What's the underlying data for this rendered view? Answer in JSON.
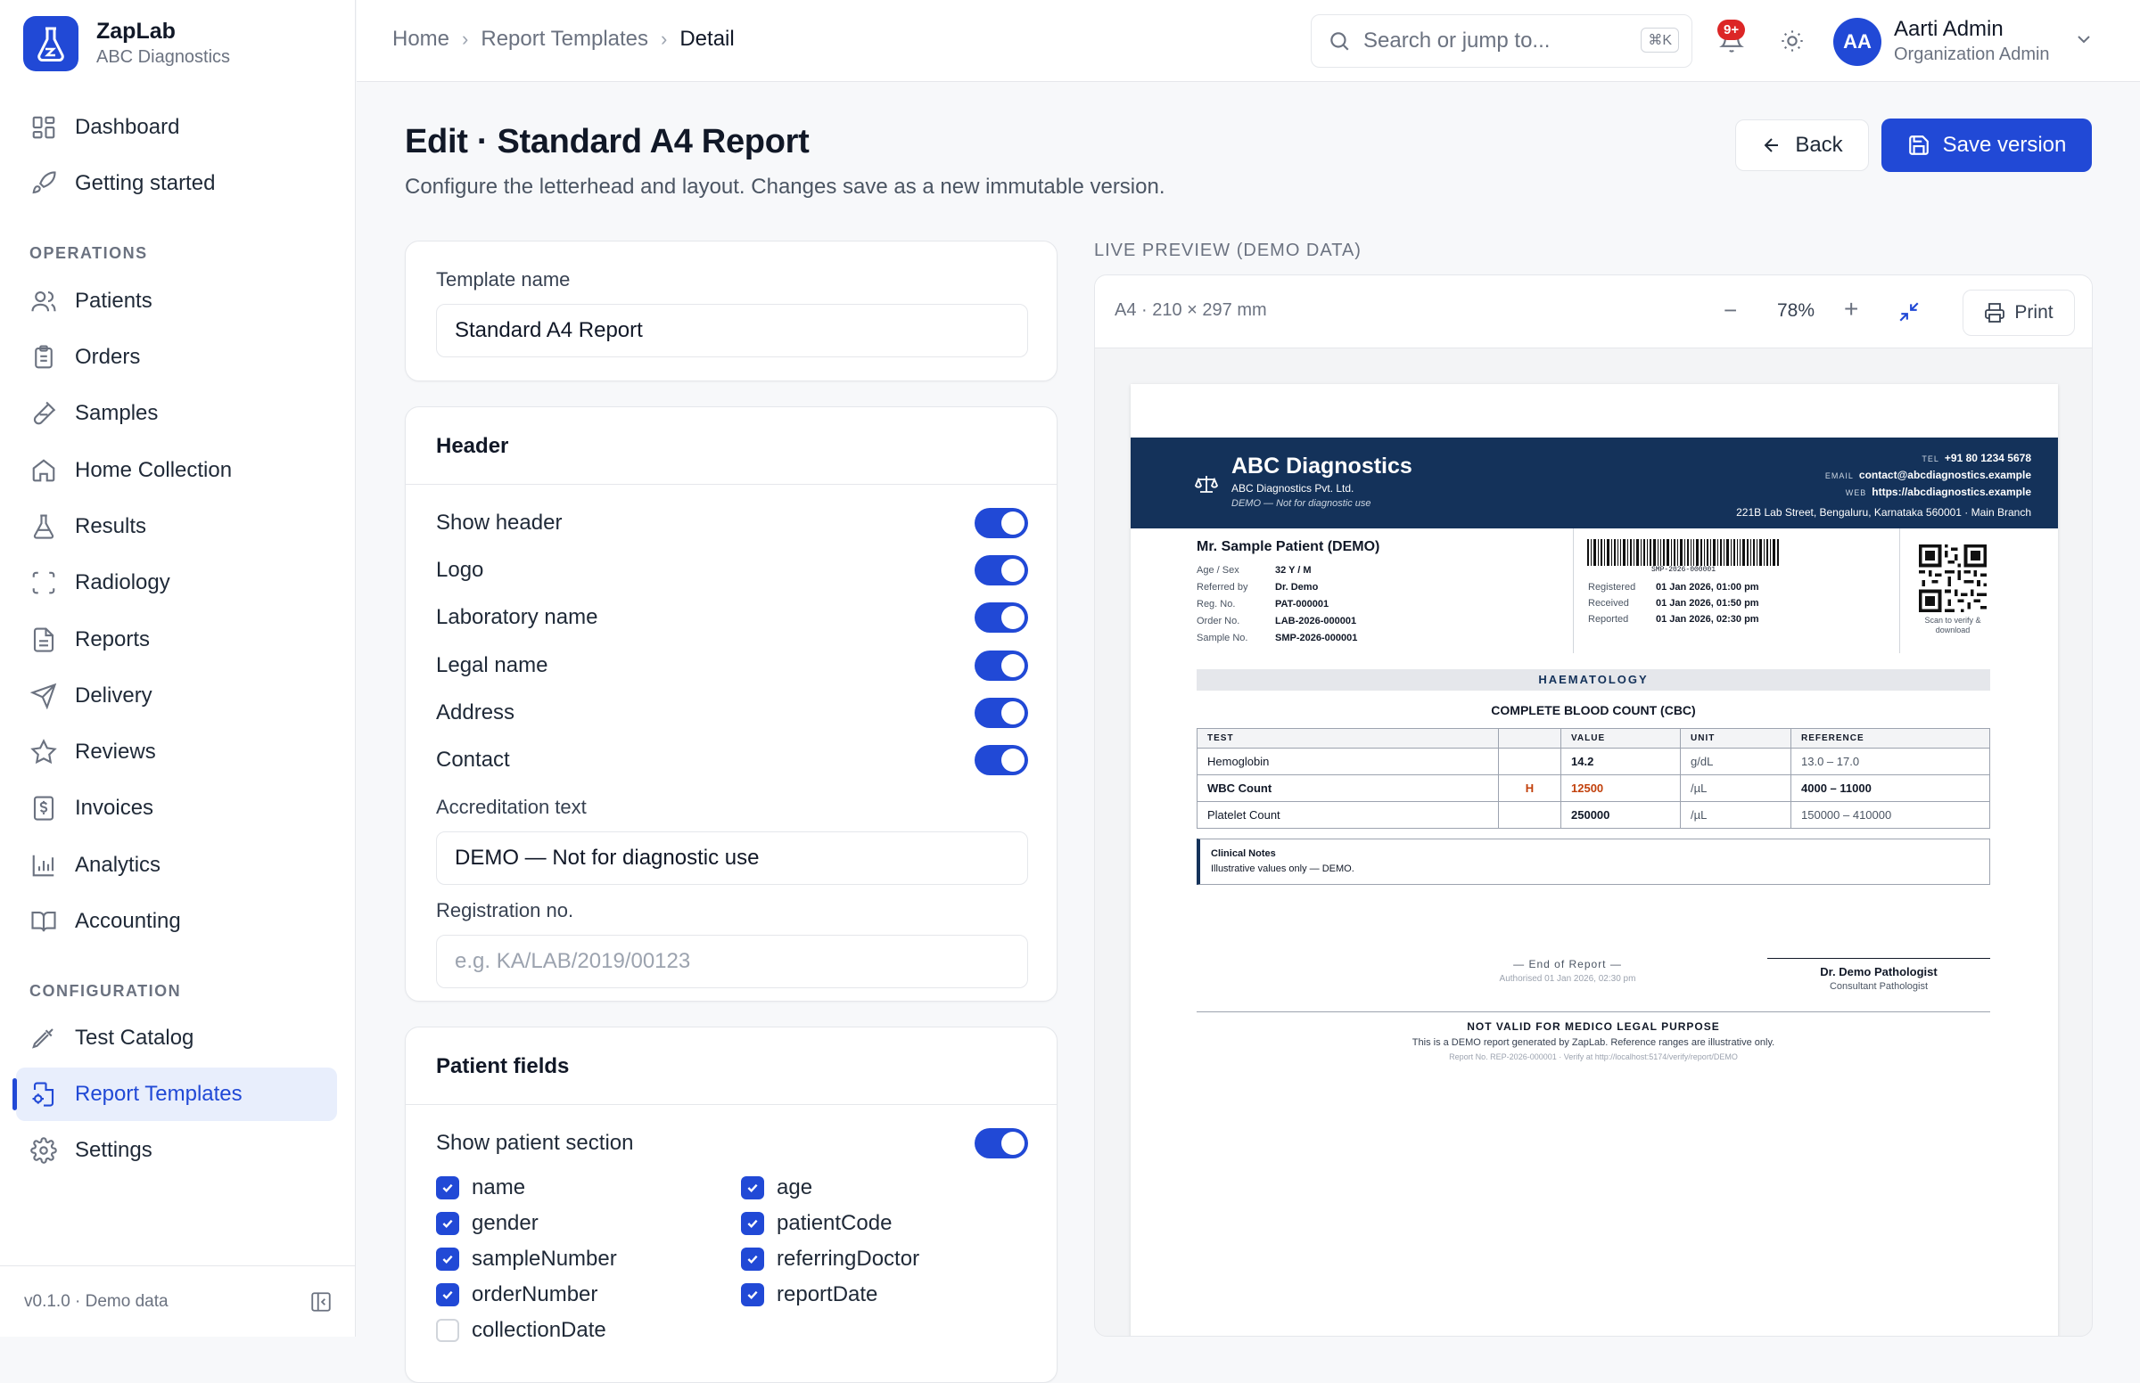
{
  "brand": {
    "name": "ZapLab",
    "org": "ABC Diagnostics"
  },
  "sidebar": {
    "top_items": [
      {
        "label": "Dashboard"
      },
      {
        "label": "Getting started"
      }
    ],
    "operations_title": "OPERATIONS",
    "operations": [
      {
        "label": "Patients"
      },
      {
        "label": "Orders"
      },
      {
        "label": "Samples"
      },
      {
        "label": "Home Collection"
      },
      {
        "label": "Results"
      },
      {
        "label": "Radiology"
      },
      {
        "label": "Reports"
      },
      {
        "label": "Delivery"
      },
      {
        "label": "Reviews"
      },
      {
        "label": "Invoices"
      },
      {
        "label": "Analytics"
      },
      {
        "label": "Accounting"
      }
    ],
    "configuration_title": "CONFIGURATION",
    "configuration": [
      {
        "label": "Test Catalog"
      },
      {
        "label": "Report Templates",
        "active": true
      },
      {
        "label": "Settings"
      }
    ],
    "footer": "v0.1.0 · Demo data"
  },
  "breadcrumb": [
    "Home",
    "Report Templates",
    "Detail"
  ],
  "search": {
    "placeholder": "Search or jump to...",
    "shortcut": "⌘K"
  },
  "notifications": {
    "count": "9+"
  },
  "user": {
    "initials": "AA",
    "name": "Aarti Admin",
    "role": "Organization Admin"
  },
  "page": {
    "title": "Edit · Standard A4 Report",
    "subtitle": "Configure the letterhead and layout. Changes save as a new immutable version.",
    "back_label": "Back",
    "save_label": "Save version"
  },
  "template_card": {
    "label": "Template name",
    "value": "Standard A4 Report"
  },
  "header_card": {
    "title": "Header",
    "toggles": [
      {
        "label": "Show header",
        "on": true
      },
      {
        "label": "Logo",
        "on": true
      },
      {
        "label": "Laboratory name",
        "on": true
      },
      {
        "label": "Legal name",
        "on": true
      },
      {
        "label": "Address",
        "on": true
      },
      {
        "label": "Contact",
        "on": true
      }
    ],
    "accreditation_label": "Accreditation text",
    "accreditation_value": "DEMO — Not for diagnostic use",
    "registration_label": "Registration no.",
    "registration_placeholder": "e.g. KA/LAB/2019/00123"
  },
  "patient_card": {
    "title": "Patient fields",
    "show_label": "Show patient section",
    "fields": [
      {
        "label": "name",
        "checked": true
      },
      {
        "label": "age",
        "checked": true
      },
      {
        "label": "gender",
        "checked": true
      },
      {
        "label": "patientCode",
        "checked": true
      },
      {
        "label": "sampleNumber",
        "checked": true
      },
      {
        "label": "referringDoctor",
        "checked": true
      },
      {
        "label": "orderNumber",
        "checked": true
      },
      {
        "label": "reportDate",
        "checked": true
      },
      {
        "label": "collectionDate",
        "checked": false
      }
    ]
  },
  "preview": {
    "label": "LIVE PREVIEW (DEMO DATA)",
    "paper": "A4 · 210 × 297 mm",
    "zoom": "78%",
    "print_label": "Print",
    "letterhead": {
      "name": "ABC Diagnostics",
      "legal": "ABC Diagnostics Pvt. Ltd.",
      "accreditation": "DEMO — Not for diagnostic use",
      "tel_label": "TEL",
      "tel": "+91 80 1234 5678",
      "email_label": "EMAIL",
      "email": "contact@abcdiagnostics.example",
      "web_label": "WEB",
      "web": "https://abcdiagnostics.example",
      "address": "221B Lab Street, Bengaluru, Karnataka 560001 · Main Branch"
    },
    "patient": {
      "name": "Mr. Sample Patient (DEMO)",
      "rows": [
        {
          "k": "Age / Sex",
          "v": "32 Y / M"
        },
        {
          "k": "Referred by",
          "v": "Dr. Demo"
        },
        {
          "k": "Reg. No.",
          "v": "PAT-000001"
        },
        {
          "k": "Order No.",
          "v": "LAB-2026-000001"
        },
        {
          "k": "Sample No.",
          "v": "SMP-2026-000001"
        }
      ],
      "barcode_text": "SMP-2026-000001",
      "dates": [
        {
          "k": "Registered",
          "v": "01 Jan 2026, 01:00 pm"
        },
        {
          "k": "Received",
          "v": "01 Jan 2026, 01:50 pm"
        },
        {
          "k": "Reported",
          "v": "01 Jan 2026, 02:30 pm"
        }
      ],
      "qr_caption": "Scan to verify & download"
    },
    "section": "HAEMATOLOGY",
    "test_name": "COMPLETE BLOOD COUNT (CBC)",
    "table": {
      "headers": [
        "TEST",
        "",
        "VALUE",
        "UNIT",
        "REFERENCE"
      ],
      "rows": [
        {
          "test": "Hemoglobin",
          "flag": "",
          "value": "14.2",
          "unit": "g/dL",
          "ref": "13.0 – 17.0"
        },
        {
          "test": "WBC Count",
          "flag": "H",
          "value": "12500",
          "unit": "/µL",
          "ref": "4000 – 11000"
        },
        {
          "test": "Platelet Count",
          "flag": "",
          "value": "250000",
          "unit": "/µL",
          "ref": "150000 – 410000"
        }
      ]
    },
    "notes_title": "Clinical Notes",
    "notes_text": "Illustrative values only — DEMO.",
    "end_of_report": "— End of Report —",
    "authorised": "Authorised 01 Jan 2026, 02:30 pm",
    "signatory": "Dr. Demo Pathologist",
    "signatory_role": "Consultant Pathologist",
    "footer_title": "NOT VALID FOR MEDICO LEGAL PURPOSE",
    "footer_line": "This is a DEMO report generated by ZapLab. Reference ranges are illustrative only.",
    "footer_ref": "Report No. REP-2026-000001 · Verify at http://localhost:5174/verify/report/DEMO"
  },
  "colors": {
    "accent": "#2149d6",
    "letterhead": "#14325a",
    "flag_high": "#c2410c"
  }
}
